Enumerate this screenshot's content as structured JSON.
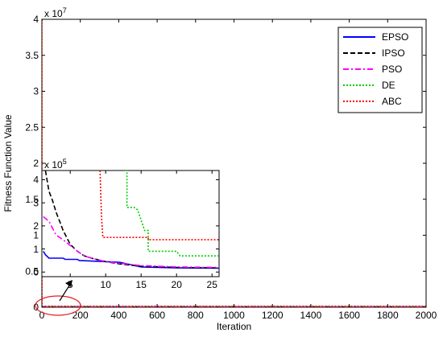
{
  "chart_data": [
    {
      "type": "line",
      "name": "main",
      "xlabel": "Iteration",
      "ylabel": "Fitness Function Value",
      "xlim": [
        0,
        2000
      ],
      "ylim": [
        0,
        4
      ],
      "exponent_label": "x 10",
      "exponent_power": "7",
      "xticks": [
        "0",
        "200",
        "400",
        "600",
        "800",
        "1000",
        "1200",
        "1400",
        "1600",
        "1800",
        "2000"
      ],
      "yticks": [
        "0",
        "0.5",
        "1",
        "1.5",
        "2",
        "2.5",
        "3",
        "3.5",
        "4"
      ],
      "xtick_values": [
        0,
        200,
        400,
        600,
        800,
        1000,
        1200,
        1400,
        1600,
        1800,
        2000
      ],
      "ytick_values": [
        0,
        0.5,
        1,
        1.5,
        2,
        2.5,
        3,
        3.5,
        4
      ],
      "legend_position": "top-right",
      "series": [
        {
          "name": "EPSO",
          "color": "#0000ff",
          "dash": "solid",
          "x": [
            0,
            2000
          ],
          "y": [
            0.004,
            0.004
          ]
        },
        {
          "name": "IPSO",
          "color": "#000000",
          "dash": "dashed",
          "x": [
            0,
            2000
          ],
          "y": [
            0.004,
            0.004
          ]
        },
        {
          "name": "PSO",
          "color": "#ff00ff",
          "dash": "dashdot",
          "x": [
            0,
            2000
          ],
          "y": [
            0.004,
            0.004
          ]
        },
        {
          "name": "DE",
          "color": "#00cc00",
          "dash": "dotted",
          "x": [
            0,
            1,
            2000
          ],
          "y": [
            4.0,
            0.006,
            0.006
          ]
        },
        {
          "name": "ABC",
          "color": "#ff0000",
          "dash": "dotted",
          "x": [
            0,
            1,
            2000
          ],
          "y": [
            4.0,
            0.013,
            0.013
          ]
        }
      ],
      "annotations": [
        {
          "type": "ellipse",
          "color": "#e02020",
          "description": "highlight of early iterations"
        }
      ]
    },
    {
      "type": "line",
      "name": "inset",
      "xlim": [
        1,
        26
      ],
      "ylim": [
        -0.2,
        4.4
      ],
      "exponent_label": "x 10",
      "exponent_power": "5",
      "xticks": [
        "5",
        "10",
        "15",
        "20",
        "25"
      ],
      "yticks": [
        "0",
        "1",
        "2",
        "3",
        "4"
      ],
      "xtick_values": [
        5,
        10,
        15,
        20,
        25
      ],
      "ytick_values": [
        0,
        1,
        2,
        3,
        4
      ],
      "series": [
        {
          "name": "EPSO",
          "color": "#0000ff",
          "dash": "solid",
          "x": [
            1.2,
            1.5,
            2,
            4,
            4.3,
            6,
            6.3,
            10,
            12,
            15,
            20,
            26
          ],
          "y": [
            0.9,
            0.75,
            0.6,
            0.6,
            0.55,
            0.55,
            0.5,
            0.45,
            0.42,
            0.22,
            0.18,
            0.17
          ]
        },
        {
          "name": "IPSO",
          "color": "#000000",
          "dash": "dashed",
          "x": [
            1.5,
            2,
            2.5,
            3,
            3.5,
            4,
            5,
            6,
            7,
            8,
            10,
            12,
            15,
            20,
            26
          ],
          "y": [
            4.4,
            3.5,
            3.1,
            2.6,
            2.2,
            1.8,
            1.2,
            0.9,
            0.7,
            0.6,
            0.45,
            0.35,
            0.25,
            0.2,
            0.18
          ]
        },
        {
          "name": "PSO",
          "color": "#ff00ff",
          "dash": "dashdot",
          "x": [
            1.2,
            2,
            2.5,
            3,
            4,
            5,
            6,
            7,
            8,
            10,
            12,
            15,
            20,
            26
          ],
          "y": [
            2.4,
            2.2,
            1.9,
            1.6,
            1.4,
            1.15,
            0.9,
            0.7,
            0.6,
            0.45,
            0.38,
            0.28,
            0.22,
            0.2
          ]
        },
        {
          "name": "DE",
          "color": "#00cc00",
          "dash": "dotted",
          "x": [
            12.8,
            13,
            13,
            14,
            14.5,
            15.5,
            16,
            16,
            20,
            20.5,
            20.5,
            26
          ],
          "y": [
            4.4,
            4.4,
            2.8,
            2.8,
            2.7,
            1.8,
            1.8,
            0.9,
            0.9,
            0.7,
            0.7,
            0.7
          ]
        },
        {
          "name": "ABC",
          "color": "#ff0000",
          "dash": "dotted",
          "x": [
            9.2,
            9.4,
            9.6,
            9.6,
            16,
            16,
            26
          ],
          "y": [
            4.4,
            2.5,
            1.5,
            1.5,
            1.5,
            1.4,
            1.4
          ]
        }
      ]
    }
  ]
}
